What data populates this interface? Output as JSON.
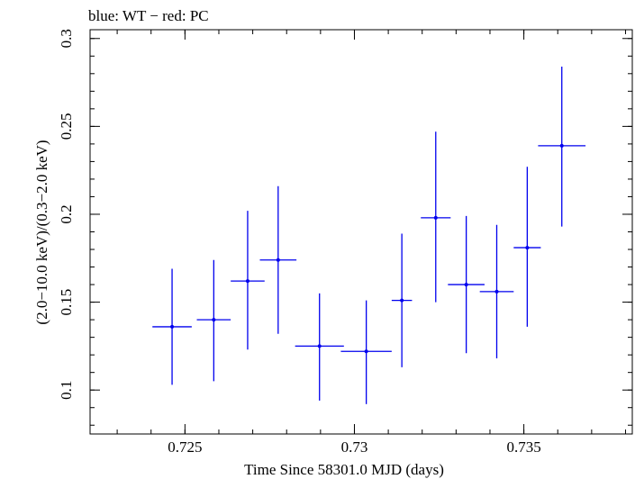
{
  "chart_data": {
    "type": "scatter",
    "title": "blue: WT − red: PC",
    "xlabel": "Time Since 58301.0 MJD (days)",
    "ylabel": "(2.0−10.0 keV)/(0.3−2.0 keV)",
    "xlim": [
      0.7222,
      0.7382
    ],
    "ylim": [
      0.075,
      0.305
    ],
    "x_ticks": [
      {
        "value": 0.725,
        "label": "0.725"
      },
      {
        "value": 0.73,
        "label": "0.73"
      },
      {
        "value": 0.735,
        "label": "0.735"
      }
    ],
    "y_ticks": [
      {
        "value": 0.1,
        "label": "0.1"
      },
      {
        "value": 0.15,
        "label": "0.15"
      },
      {
        "value": 0.2,
        "label": "0.2"
      },
      {
        "value": 0.25,
        "label": "0.25"
      },
      {
        "value": 0.3,
        "label": "0.3"
      }
    ],
    "grid": false,
    "series": [
      {
        "name": "WT",
        "color": "#0000ee",
        "points": [
          {
            "x": 0.72462,
            "xerr": 0.00058,
            "y": 0.136,
            "ylo": 0.103,
            "yhi": 0.169
          },
          {
            "x": 0.72585,
            "xerr": 0.0005,
            "y": 0.14,
            "ylo": 0.105,
            "yhi": 0.174
          },
          {
            "x": 0.72685,
            "xerr": 0.0005,
            "y": 0.162,
            "ylo": 0.123,
            "yhi": 0.202
          },
          {
            "x": 0.72775,
            "xerr": 0.00054,
            "y": 0.174,
            "ylo": 0.132,
            "yhi": 0.216
          },
          {
            "x": 0.72897,
            "xerr": 0.00072,
            "y": 0.125,
            "ylo": 0.094,
            "yhi": 0.155
          },
          {
            "x": 0.73035,
            "xerr": 0.00075,
            "y": 0.122,
            "ylo": 0.092,
            "yhi": 0.151
          },
          {
            "x": 0.7314,
            "xerr": 0.0003,
            "y": 0.151,
            "ylo": 0.113,
            "yhi": 0.189
          },
          {
            "x": 0.7324,
            "xerr": 0.00044,
            "y": 0.198,
            "ylo": 0.15,
            "yhi": 0.247
          },
          {
            "x": 0.7333,
            "xerr": 0.00054,
            "y": 0.16,
            "ylo": 0.121,
            "yhi": 0.199
          },
          {
            "x": 0.7342,
            "xerr": 0.0005,
            "y": 0.156,
            "ylo": 0.118,
            "yhi": 0.194
          },
          {
            "x": 0.7351,
            "xerr": 0.0004,
            "y": 0.181,
            "ylo": 0.136,
            "yhi": 0.227
          },
          {
            "x": 0.73612,
            "xerr": 0.0007,
            "y": 0.239,
            "ylo": 0.193,
            "yhi": 0.284
          }
        ]
      }
    ]
  }
}
